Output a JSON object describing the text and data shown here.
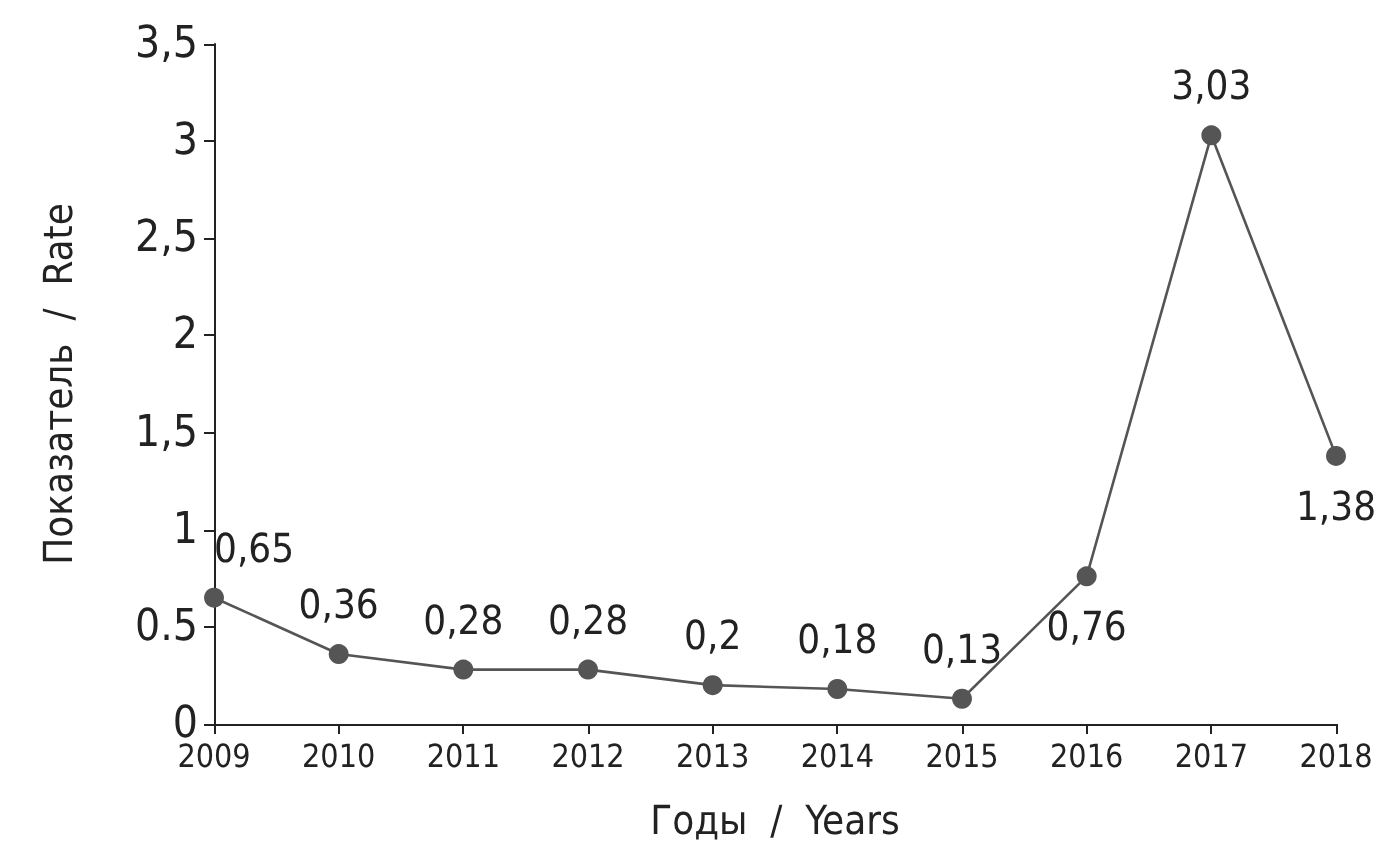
{
  "chart_data": {
    "type": "line",
    "xlabel": "Годы  /  Years",
    "ylabel": "Показатель  /  Rate",
    "categories": [
      "2009",
      "2010",
      "2011",
      "2012",
      "2013",
      "2014",
      "2015",
      "2016",
      "2017",
      "2018"
    ],
    "series": [
      {
        "color": "#555555",
        "values": [
          0.65,
          0.36,
          0.28,
          0.28,
          0.2,
          0.18,
          0.13,
          0.76,
          3.03,
          1.38
        ],
        "value_labels": [
          "0,65",
          "0,36",
          "0,28",
          "0,28",
          "0,2",
          "0,18",
          "0,13",
          "0,76",
          "3,03",
          "1,38"
        ]
      }
    ],
    "ylim": [
      0,
      3.5
    ],
    "yticks": [
      0,
      0.5,
      1,
      {
        "value": 1.5,
        "label": "1,5"
      },
      2,
      {
        "value": 2.5,
        "label": "2,5"
      },
      3,
      {
        "value": 3.5,
        "label": "3,5"
      }
    ],
    "grid": false,
    "marker": "circle",
    "line_style": "solid"
  }
}
